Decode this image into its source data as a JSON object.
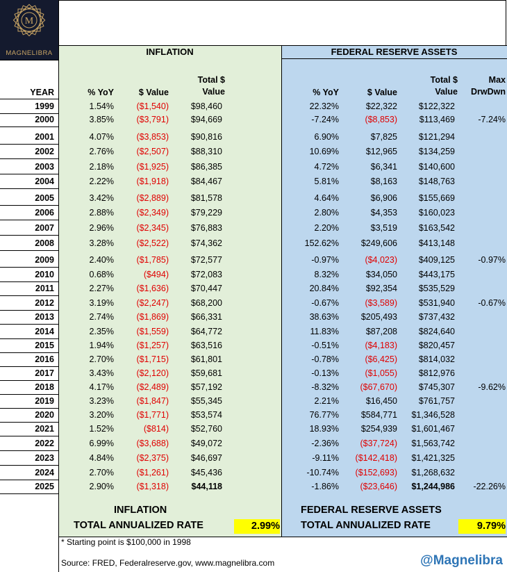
{
  "logo": {
    "text": "MAGNELIBRA"
  },
  "headers": {
    "inflation": "INFLATION",
    "fed": "FEDERAL RESERVE ASSETS",
    "year": "YEAR",
    "yoy": "% YoY",
    "value": "$ Value",
    "total_line1": "Total $",
    "total_line2": "Value",
    "maxdd_line1": "Max",
    "maxdd_line2": "DrwDwn"
  },
  "rows": [
    {
      "year": "1999",
      "i_yoy": "1.54%",
      "i_val": "($1,540)",
      "i_tot": "$98,460",
      "f_yoy": "22.32%",
      "f_val": "$22,322",
      "f_tot": "$122,322",
      "dd": ""
    },
    {
      "year": "2000",
      "i_yoy": "3.85%",
      "i_val": "($3,791)",
      "i_tot": "$94,669",
      "f_yoy": "-7.24%",
      "f_val": "($8,853)",
      "f_tot": "$113,469",
      "dd": "-7.24%"
    },
    {
      "year": "2001",
      "i_yoy": "4.07%",
      "i_val": "($3,853)",
      "i_tot": "$90,816",
      "f_yoy": "6.90%",
      "f_val": "$7,825",
      "f_tot": "$121,294",
      "dd": ""
    },
    {
      "year": "2002",
      "i_yoy": "2.76%",
      "i_val": "($2,507)",
      "i_tot": "$88,310",
      "f_yoy": "10.69%",
      "f_val": "$12,965",
      "f_tot": "$134,259",
      "dd": ""
    },
    {
      "year": "2003",
      "i_yoy": "2.18%",
      "i_val": "($1,925)",
      "i_tot": "$86,385",
      "f_yoy": "4.72%",
      "f_val": "$6,341",
      "f_tot": "$140,600",
      "dd": ""
    },
    {
      "year": "2004",
      "i_yoy": "2.22%",
      "i_val": "($1,918)",
      "i_tot": "$84,467",
      "f_yoy": "5.81%",
      "f_val": "$8,163",
      "f_tot": "$148,763",
      "dd": ""
    },
    {
      "year": "2005",
      "i_yoy": "3.42%",
      "i_val": "($2,889)",
      "i_tot": "$81,578",
      "f_yoy": "4.64%",
      "f_val": "$6,906",
      "f_tot": "$155,669",
      "dd": ""
    },
    {
      "year": "2006",
      "i_yoy": "2.88%",
      "i_val": "($2,349)",
      "i_tot": "$79,229",
      "f_yoy": "2.80%",
      "f_val": "$4,353",
      "f_tot": "$160,023",
      "dd": ""
    },
    {
      "year": "2007",
      "i_yoy": "2.96%",
      "i_val": "($2,345)",
      "i_tot": "$76,883",
      "f_yoy": "2.20%",
      "f_val": "$3,519",
      "f_tot": "$163,542",
      "dd": ""
    },
    {
      "year": "2008",
      "i_yoy": "3.28%",
      "i_val": "($2,522)",
      "i_tot": "$74,362",
      "f_yoy": "152.62%",
      "f_val": "$249,606",
      "f_tot": "$413,148",
      "dd": ""
    },
    {
      "year": "2009",
      "i_yoy": "2.40%",
      "i_val": "($1,785)",
      "i_tot": "$72,577",
      "f_yoy": "-0.97%",
      "f_val": "($4,023)",
      "f_tot": "$409,125",
      "dd": "-0.97%"
    },
    {
      "year": "2010",
      "i_yoy": "0.68%",
      "i_val": "($494)",
      "i_tot": "$72,083",
      "f_yoy": "8.32%",
      "f_val": "$34,050",
      "f_tot": "$443,175",
      "dd": ""
    },
    {
      "year": "2011",
      "i_yoy": "2.27%",
      "i_val": "($1,636)",
      "i_tot": "$70,447",
      "f_yoy": "20.84%",
      "f_val": "$92,354",
      "f_tot": "$535,529",
      "dd": ""
    },
    {
      "year": "2012",
      "i_yoy": "3.19%",
      "i_val": "($2,247)",
      "i_tot": "$68,200",
      "f_yoy": "-0.67%",
      "f_val": "($3,589)",
      "f_tot": "$531,940",
      "dd": "-0.67%"
    },
    {
      "year": "2013",
      "i_yoy": "2.74%",
      "i_val": "($1,869)",
      "i_tot": "$66,331",
      "f_yoy": "38.63%",
      "f_val": "$205,493",
      "f_tot": "$737,432",
      "dd": ""
    },
    {
      "year": "2014",
      "i_yoy": "2.35%",
      "i_val": "($1,559)",
      "i_tot": "$64,772",
      "f_yoy": "11.83%",
      "f_val": "$87,208",
      "f_tot": "$824,640",
      "dd": ""
    },
    {
      "year": "2015",
      "i_yoy": "1.94%",
      "i_val": "($1,257)",
      "i_tot": "$63,516",
      "f_yoy": "-0.51%",
      "f_val": "($4,183)",
      "f_tot": "$820,457",
      "dd": ""
    },
    {
      "year": "2016",
      "i_yoy": "2.70%",
      "i_val": "($1,715)",
      "i_tot": "$61,801",
      "f_yoy": "-0.78%",
      "f_val": "($6,425)",
      "f_tot": "$814,032",
      "dd": ""
    },
    {
      "year": "2017",
      "i_yoy": "3.43%",
      "i_val": "($2,120)",
      "i_tot": "$59,681",
      "f_yoy": "-0.13%",
      "f_val": "($1,055)",
      "f_tot": "$812,976",
      "dd": ""
    },
    {
      "year": "2018",
      "i_yoy": "4.17%",
      "i_val": "($2,489)",
      "i_tot": "$57,192",
      "f_yoy": "-8.32%",
      "f_val": "($67,670)",
      "f_tot": "$745,307",
      "dd": "-9.62%"
    },
    {
      "year": "2019",
      "i_yoy": "3.23%",
      "i_val": "($1,847)",
      "i_tot": "$55,345",
      "f_yoy": "2.21%",
      "f_val": "$16,450",
      "f_tot": "$761,757",
      "dd": ""
    },
    {
      "year": "2020",
      "i_yoy": "3.20%",
      "i_val": "($1,771)",
      "i_tot": "$53,574",
      "f_yoy": "76.77%",
      "f_val": "$584,771",
      "f_tot": "$1,346,528",
      "dd": ""
    },
    {
      "year": "2021",
      "i_yoy": "1.52%",
      "i_val": "($814)",
      "i_tot": "$52,760",
      "f_yoy": "18.93%",
      "f_val": "$254,939",
      "f_tot": "$1,601,467",
      "dd": ""
    },
    {
      "year": "2022",
      "i_yoy": "6.99%",
      "i_val": "($3,688)",
      "i_tot": "$49,072",
      "f_yoy": "-2.36%",
      "f_val": "($37,724)",
      "f_tot": "$1,563,742",
      "dd": ""
    },
    {
      "year": "2023",
      "i_yoy": "4.84%",
      "i_val": "($2,375)",
      "i_tot": "$46,697",
      "f_yoy": "-9.11%",
      "f_val": "($142,418)",
      "f_tot": "$1,421,325",
      "dd": ""
    },
    {
      "year": "2024",
      "i_yoy": "2.70%",
      "i_val": "($1,261)",
      "i_tot": "$45,436",
      "f_yoy": "-10.74%",
      "f_val": "($152,693)",
      "f_tot": "$1,268,632",
      "dd": ""
    },
    {
      "year": "2025",
      "i_yoy": "2.90%",
      "i_val": "($1,318)",
      "i_tot": "$44,118",
      "f_yoy": "-1.86%",
      "f_val": "($23,646)",
      "f_tot": "$1,244,986",
      "dd": "-22.26%"
    }
  ],
  "summary": {
    "inflation_label": "INFLATION",
    "fed_label": "FEDERAL RESERVE ASSETS",
    "rate_label": "TOTAL ANNUALIZED RATE",
    "inflation_rate": "2.99%",
    "fed_rate": "9.79%"
  },
  "footer": {
    "note": "* Starting point is $100,000 in 1998",
    "source": "Source: FRED, Federalreserve.gov, www.magnelibra.com",
    "handle": "@Magnelibra"
  },
  "colors": {
    "negative": "#e00000",
    "inflation_bg": "#e2efd9",
    "fed_bg": "#bdd7ee",
    "highlight": "#ffff00",
    "handle": "#2e75b6"
  }
}
